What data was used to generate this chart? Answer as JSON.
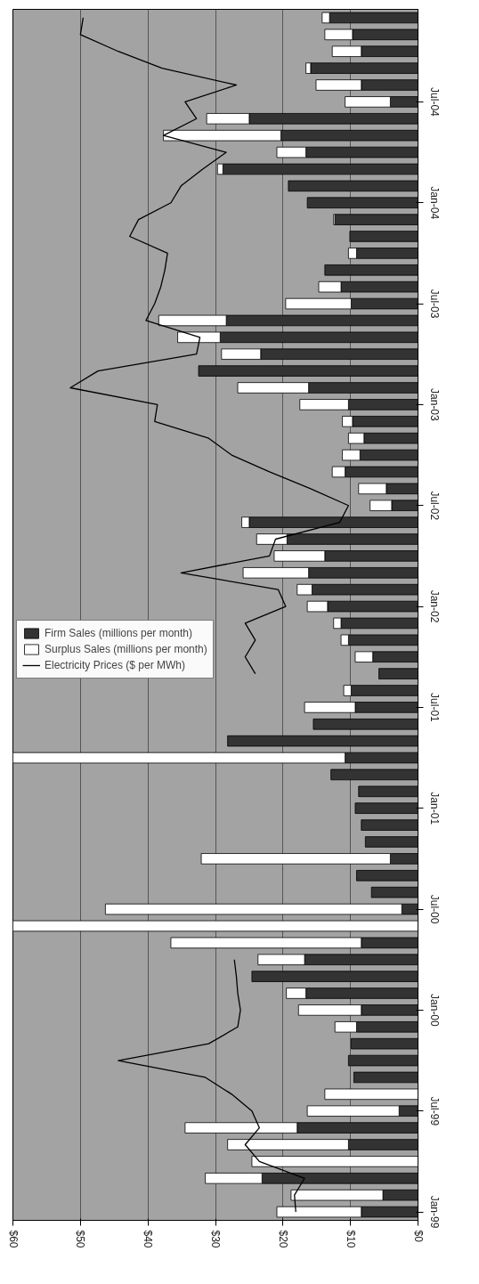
{
  "chart_data": {
    "type": "bar",
    "orientation": "horizontal",
    "stacked": true,
    "categories": [
      null,
      null,
      null,
      null,
      null,
      "Jul-04",
      null,
      null,
      null,
      null,
      null,
      "Jan-04",
      null,
      null,
      null,
      null,
      null,
      "Jul-03",
      null,
      null,
      null,
      null,
      null,
      "Jan-03",
      null,
      null,
      null,
      null,
      null,
      "Jul-02",
      null,
      null,
      null,
      null,
      null,
      "Jan-02",
      null,
      null,
      null,
      null,
      null,
      "Jul-01",
      null,
      null,
      null,
      null,
      null,
      "Jan-01",
      null,
      null,
      null,
      null,
      null,
      "Jul-00",
      null,
      null,
      null,
      null,
      null,
      "Jan-00",
      null,
      null,
      null,
      null,
      null,
      "Jul-99",
      null,
      null,
      null,
      null,
      null,
      "Jan-99"
    ],
    "series": [
      {
        "name": "Firm Sales (millions per month)",
        "color": "#333333",
        "values": [
          13.1,
          9.7,
          8.4,
          15.9,
          8.4,
          4.1,
          25.0,
          20.3,
          16.6,
          28.9,
          19.2,
          16.4,
          12.3,
          10.1,
          9.1,
          13.8,
          11.4,
          9.9,
          28.4,
          29.3,
          23.3,
          32.5,
          16.2,
          10.3,
          9.7,
          8.0,
          8.6,
          10.8,
          4.7,
          3.9,
          25.0,
          19.4,
          13.8,
          16.2,
          15.7,
          13.4,
          11.4,
          10.3,
          6.7,
          5.8,
          9.9,
          9.3,
          15.5,
          28.2,
          10.8,
          12.9,
          8.8,
          9.3,
          8.4,
          7.8,
          4.1,
          9.1,
          6.9,
          2.4,
          null,
          8.4,
          16.8,
          24.6,
          16.6,
          8.4,
          9.1,
          9.9,
          10.3,
          9.5,
          null,
          2.8,
          17.9,
          10.3,
          null,
          23.1,
          5.2,
          8.4
        ]
      },
      {
        "name": "Surplus Sales (millions per month)",
        "color": "#ffffff",
        "values": [
          1.1,
          4.1,
          4.3,
          0.7,
          6.7,
          6.7,
          6.3,
          17.4,
          4.3,
          0.8,
          null,
          null,
          0.2,
          null,
          1.2,
          null,
          3.3,
          9.7,
          10.0,
          6.3,
          5.8,
          null,
          10.5,
          7.2,
          1.5,
          2.3,
          2.6,
          1.9,
          4.1,
          3.2,
          1.1,
          4.5,
          7.5,
          9.7,
          2.2,
          3.0,
          1.1,
          1.1,
          2.6,
          null,
          1.1,
          7.5,
          null,
          null,
          49.2,
          null,
          null,
          null,
          null,
          null,
          28.0,
          null,
          null,
          43.9,
          60,
          28.2,
          6.9,
          null,
          2.9,
          9.3,
          3.2,
          null,
          null,
          null,
          13.8,
          13.6,
          16.6,
          17.9,
          24.6,
          8.4,
          13.6,
          12.5
        ]
      },
      {
        "name": "Electricity Prices ($ per MWh)",
        "type": "line",
        "color": "#000000",
        "values": [
          49.6,
          50.0,
          44.4,
          37.9,
          26.9,
          34.5,
          32.8,
          37.7,
          28.4,
          31.9,
          35.1,
          36.6,
          41.4,
          42.7,
          37.1,
          37.5,
          38.1,
          39.0,
          40.3,
          32.3,
          32.8,
          47.4,
          51.5,
          38.6,
          39.0,
          31.0,
          27.6,
          22.0,
          15.9,
          10.3,
          11.6,
          21.1,
          22.0,
          35.1,
          20.7,
          19.6,
          25.6,
          24.1,
          25.6,
          24.1,
          null,
          null,
          null,
          null,
          null,
          null,
          null,
          null,
          null,
          null,
          null,
          null,
          null,
          null,
          null,
          null,
          27.2,
          26.9,
          26.7,
          26.3,
          26.7,
          31.0,
          44.4,
          31.5,
          27.6,
          24.6,
          23.5,
          25.6,
          23.5,
          16.8,
          18.3,
          18.1
        ]
      }
    ],
    "xlim": [
      60,
      0
    ],
    "xticks": [
      {
        "value": 60,
        "label": "$60"
      },
      {
        "value": 50,
        "label": "$50"
      },
      {
        "value": 40,
        "label": "$40"
      },
      {
        "value": 30,
        "label": "$30"
      },
      {
        "value": 20,
        "label": "$20"
      },
      {
        "value": 10,
        "label": "$10"
      },
      {
        "value": 0,
        "label": "$0"
      }
    ],
    "grid": "x",
    "legend": "left"
  }
}
